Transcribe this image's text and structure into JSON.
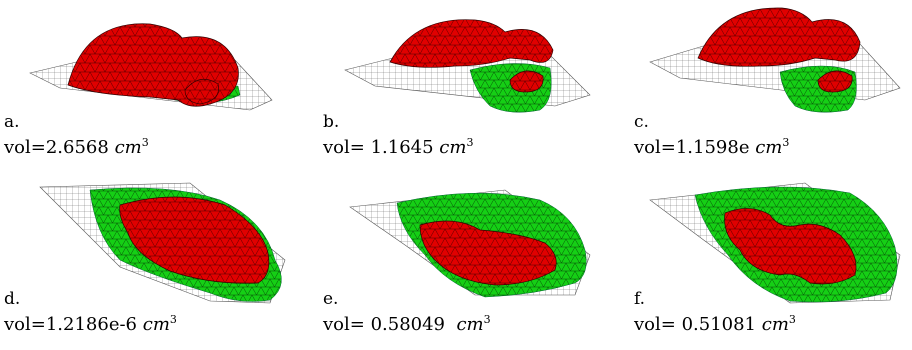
{
  "colors": {
    "red": "#e00000",
    "green": "#11cc11",
    "mesh": "#555555",
    "edge": "#222222"
  },
  "panels": [
    {
      "letter": "a.",
      "vol_text": "vol=2.6568",
      "unit": "cm",
      "exp": "3"
    },
    {
      "letter": "b.",
      "vol_text": "vol= 1.1645",
      "unit": "cm",
      "exp": "3"
    },
    {
      "letter": "c.",
      "vol_text": "vol=1.1598e",
      "unit": "cm",
      "exp": "3"
    },
    {
      "letter": "d.",
      "vol_text": "vol=1.2186e-6",
      "unit": "cm",
      "exp": "3"
    },
    {
      "letter": "e.",
      "vol_text": "vol= 0.58049 ",
      "unit": "cm",
      "exp": "3"
    },
    {
      "letter": "f.",
      "vol_text": "vol= 0.51081",
      "unit": "cm",
      "exp": "3"
    }
  ]
}
